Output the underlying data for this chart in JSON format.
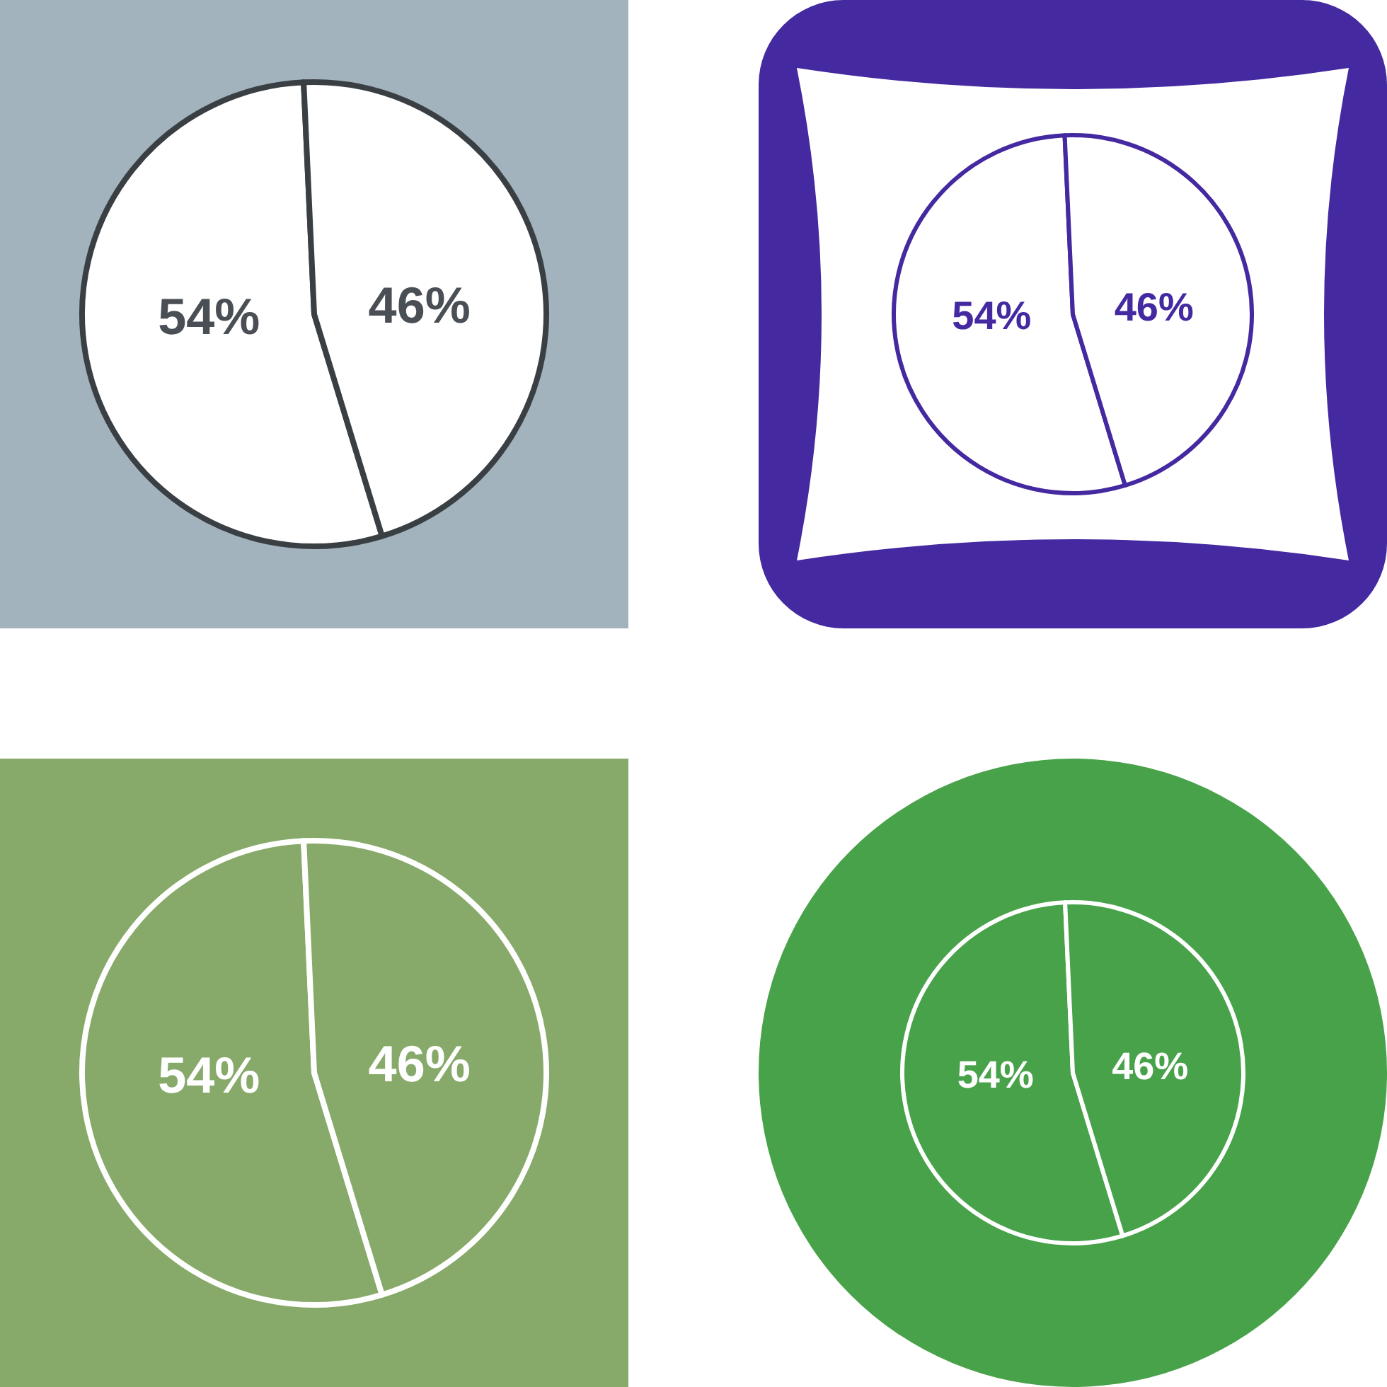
{
  "chart_data": [
    {
      "type": "pie",
      "categories": [
        null,
        null
      ],
      "values": [
        54,
        46
      ],
      "value_labels": [
        "54%",
        "46%"
      ],
      "colors": [
        "#ffffff",
        "#ffffff"
      ]
    },
    {
      "type": "pie",
      "categories": [
        null,
        null
      ],
      "values": [
        54,
        46
      ],
      "value_labels": [
        "54%",
        "46%"
      ],
      "colors": [
        "#ffffff",
        "#ffffff"
      ]
    },
    {
      "type": "pie",
      "categories": [
        null,
        null
      ],
      "values": [
        54,
        46
      ],
      "value_labels": [
        "54%",
        "46%"
      ],
      "colors": [
        "#87aa6a",
        "#87aa6a"
      ]
    },
    {
      "type": "pie",
      "categories": [
        null,
        null
      ],
      "values": [
        54,
        46
      ],
      "value_labels": [
        "54%",
        "46%"
      ],
      "colors": [
        "#48a24a",
        "#48a24a"
      ]
    }
  ]
}
